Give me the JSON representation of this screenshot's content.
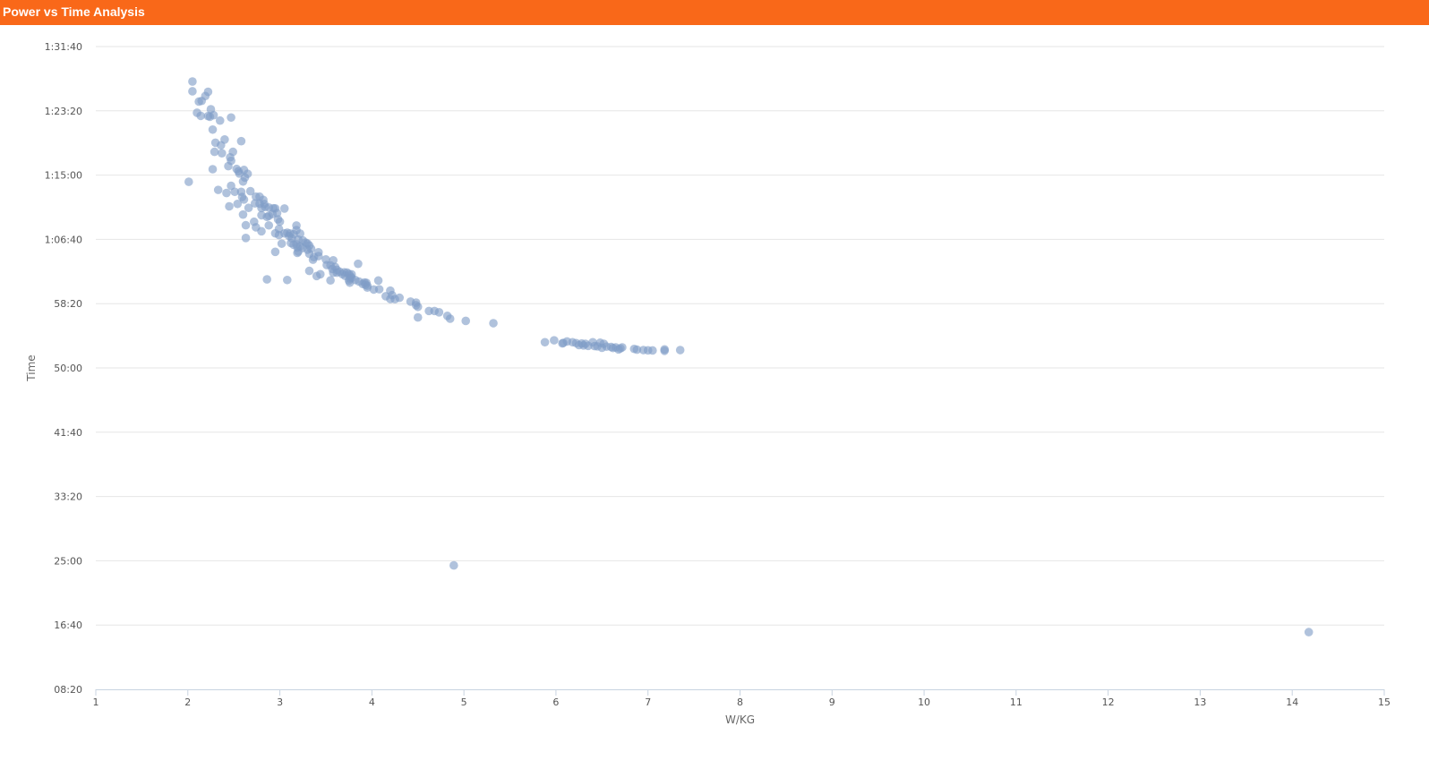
{
  "header": {
    "title": "Power vs Time Analysis"
  },
  "chart_data": {
    "type": "scatter",
    "title": "",
    "xlabel": "W/KG",
    "ylabel": "Time",
    "xlim": [
      1,
      15
    ],
    "ylim_seconds": [
      500,
      5500
    ],
    "x_ticks": [
      "1",
      "2",
      "3",
      "4",
      "5",
      "6",
      "7",
      "8",
      "9",
      "10",
      "11",
      "12",
      "13",
      "14",
      "15"
    ],
    "y_ticks": [
      {
        "value": 500,
        "label": "08:20"
      },
      {
        "value": 1000,
        "label": "16:40"
      },
      {
        "value": 1500,
        "label": "25:00"
      },
      {
        "value": 2000,
        "label": "33:20"
      },
      {
        "value": 2500,
        "label": "41:40"
      },
      {
        "value": 3000,
        "label": "50:00"
      },
      {
        "value": 3500,
        "label": "58:20"
      },
      {
        "value": 4000,
        "label": "1:06:40"
      },
      {
        "value": 4500,
        "label": "1:15:00"
      },
      {
        "value": 5000,
        "label": "1:23:20"
      },
      {
        "value": 5500,
        "label": "1:31:40"
      }
    ],
    "grid": true,
    "legend": "none",
    "point_color": "#7f9cc6",
    "gridline_color": "#e6e6e6",
    "series": [
      {
        "points": [
          [
            2.05,
            5228
          ],
          [
            2.05,
            5152
          ],
          [
            2.22,
            5148
          ],
          [
            2.19,
            5115
          ],
          [
            2.15,
            5077
          ],
          [
            2.12,
            5072
          ],
          [
            2.25,
            5012
          ],
          [
            2.1,
            4985
          ],
          [
            2.28,
            4966
          ],
          [
            2.14,
            4961
          ],
          [
            2.22,
            4959
          ],
          [
            2.35,
            4924
          ],
          [
            2.47,
            4948
          ],
          [
            2.24,
            4954
          ],
          [
            2.27,
            4854
          ],
          [
            2.4,
            4777
          ],
          [
            2.58,
            4764
          ],
          [
            2.3,
            4752
          ],
          [
            2.36,
            4732
          ],
          [
            2.29,
            4681
          ],
          [
            2.49,
            4681
          ],
          [
            2.37,
            4670
          ],
          [
            2.46,
            4638
          ],
          [
            2.47,
            4611
          ],
          [
            2.44,
            4570
          ],
          [
            2.53,
            4548
          ],
          [
            2.55,
            4530
          ],
          [
            2.61,
            4540
          ],
          [
            2.65,
            4510
          ],
          [
            2.56,
            4512
          ],
          [
            2.62,
            4481
          ],
          [
            2.27,
            4546
          ],
          [
            2.01,
            4448
          ],
          [
            2.47,
            4417
          ],
          [
            2.6,
            4450
          ],
          [
            2.33,
            4385
          ],
          [
            2.51,
            4370
          ],
          [
            2.58,
            4370
          ],
          [
            2.68,
            4375
          ],
          [
            2.42,
            4361
          ],
          [
            2.59,
            4330
          ],
          [
            2.74,
            4332
          ],
          [
            2.61,
            4310
          ],
          [
            2.78,
            4332
          ],
          [
            2.82,
            4307
          ],
          [
            2.73,
            4280
          ],
          [
            2.78,
            4278
          ],
          [
            2.83,
            4276
          ],
          [
            2.54,
            4276
          ],
          [
            2.45,
            4257
          ],
          [
            2.84,
            4252
          ],
          [
            2.88,
            4248
          ],
          [
            2.93,
            4242
          ],
          [
            2.66,
            4245
          ],
          [
            2.8,
            4244
          ],
          [
            2.95,
            4241
          ],
          [
            3.05,
            4240
          ],
          [
            2.6,
            4193
          ],
          [
            2.8,
            4188
          ],
          [
            2.88,
            4183
          ],
          [
            2.97,
            4204
          ],
          [
            2.92,
            4197
          ],
          [
            2.86,
            4175
          ],
          [
            2.72,
            4137
          ],
          [
            2.63,
            4110
          ],
          [
            2.88,
            4109
          ],
          [
            2.74,
            4094
          ],
          [
            2.98,
            4156
          ],
          [
            3.0,
            4138
          ],
          [
            3.18,
            4108
          ],
          [
            2.99,
            4081
          ],
          [
            2.8,
            4063
          ],
          [
            3.18,
            4072
          ],
          [
            2.95,
            4047
          ],
          [
            3.05,
            4047
          ],
          [
            3.08,
            4052
          ],
          [
            3.11,
            4046
          ],
          [
            3.15,
            4040
          ],
          [
            3.22,
            4045
          ],
          [
            2.99,
            4034
          ],
          [
            3.1,
            4026
          ],
          [
            3.13,
            4008
          ],
          [
            3.2,
            3998
          ],
          [
            3.25,
            3992
          ],
          [
            3.12,
            3972
          ],
          [
            3.28,
            3975
          ],
          [
            3.15,
            3958
          ],
          [
            3.18,
            3962
          ],
          [
            3.22,
            3946
          ],
          [
            3.3,
            3968
          ],
          [
            3.32,
            3952
          ],
          [
            2.63,
            4011
          ],
          [
            3.19,
            3938
          ],
          [
            3.25,
            3933
          ],
          [
            3.34,
            3927
          ],
          [
            3.02,
            3967
          ],
          [
            3.3,
            3920
          ],
          [
            3.2,
            3905
          ],
          [
            3.19,
            3895
          ],
          [
            2.95,
            3903
          ],
          [
            3.42,
            3900
          ],
          [
            3.32,
            3888
          ],
          [
            3.42,
            3870
          ],
          [
            3.37,
            3862
          ],
          [
            3.5,
            3844
          ],
          [
            3.58,
            3837
          ],
          [
            3.36,
            3842
          ],
          [
            3.51,
            3800
          ],
          [
            3.55,
            3798
          ],
          [
            3.6,
            3786
          ],
          [
            3.57,
            3770
          ],
          [
            3.62,
            3763
          ],
          [
            3.85,
            3810
          ],
          [
            3.65,
            3748
          ],
          [
            3.7,
            3744
          ],
          [
            3.73,
            3742
          ],
          [
            3.75,
            3731
          ],
          [
            3.32,
            3755
          ],
          [
            3.62,
            3741
          ],
          [
            3.58,
            3740
          ],
          [
            3.68,
            3730
          ],
          [
            3.78,
            3728
          ],
          [
            3.71,
            3716
          ],
          [
            3.77,
            3711
          ],
          [
            3.44,
            3729
          ],
          [
            3.4,
            3715
          ],
          [
            3.78,
            3700
          ],
          [
            3.76,
            3695
          ],
          [
            3.82,
            3684
          ],
          [
            3.75,
            3680
          ],
          [
            3.86,
            3672
          ],
          [
            3.92,
            3665
          ],
          [
            3.94,
            3662
          ],
          [
            3.9,
            3653
          ],
          [
            3.93,
            3647
          ],
          [
            3.95,
            3640
          ],
          [
            3.76,
            3663
          ],
          [
            3.55,
            3681
          ],
          [
            3.08,
            3684
          ],
          [
            2.86,
            3689
          ],
          [
            4.07,
            3680
          ],
          [
            3.95,
            3625
          ],
          [
            4.02,
            3610
          ],
          [
            4.08,
            3612
          ],
          [
            4.2,
            3601
          ],
          [
            4.15,
            3558
          ],
          [
            4.22,
            3566
          ],
          [
            4.3,
            3546
          ],
          [
            4.2,
            3536
          ],
          [
            4.25,
            3535
          ],
          [
            4.42,
            3516
          ],
          [
            4.48,
            3508
          ],
          [
            4.48,
            3488
          ],
          [
            4.5,
            3475
          ],
          [
            4.62,
            3443
          ],
          [
            4.68,
            3443
          ],
          [
            4.73,
            3433
          ],
          [
            4.82,
            3405
          ],
          [
            4.85,
            3383
          ],
          [
            4.5,
            3393
          ],
          [
            5.02,
            3366
          ],
          [
            5.32,
            3348
          ],
          [
            5.98,
            3215
          ],
          [
            5.88,
            3200
          ],
          [
            6.07,
            3191
          ],
          [
            6.12,
            3206
          ],
          [
            6.18,
            3200
          ],
          [
            6.08,
            3195
          ],
          [
            6.22,
            3193
          ],
          [
            6.28,
            3190
          ],
          [
            6.32,
            3188
          ],
          [
            6.4,
            3200
          ],
          [
            6.48,
            3196
          ],
          [
            6.52,
            3188
          ],
          [
            6.25,
            3178
          ],
          [
            6.3,
            3175
          ],
          [
            6.35,
            3172
          ],
          [
            6.42,
            3170
          ],
          [
            6.45,
            3168
          ],
          [
            6.55,
            3166
          ],
          [
            6.6,
            3163
          ],
          [
            6.65,
            3160
          ],
          [
            6.72,
            3160
          ],
          [
            6.5,
            3157
          ],
          [
            6.62,
            3155
          ],
          [
            6.7,
            3152
          ],
          [
            6.85,
            3148
          ],
          [
            6.68,
            3144
          ],
          [
            6.88,
            3142
          ],
          [
            6.95,
            3139
          ],
          [
            7.0,
            3137
          ],
          [
            7.05,
            3136
          ],
          [
            7.18,
            3144
          ],
          [
            7.35,
            3139
          ],
          [
            7.18,
            3133
          ],
          [
            4.89,
            1464
          ],
          [
            14.18,
            945
          ]
        ]
      }
    ]
  }
}
